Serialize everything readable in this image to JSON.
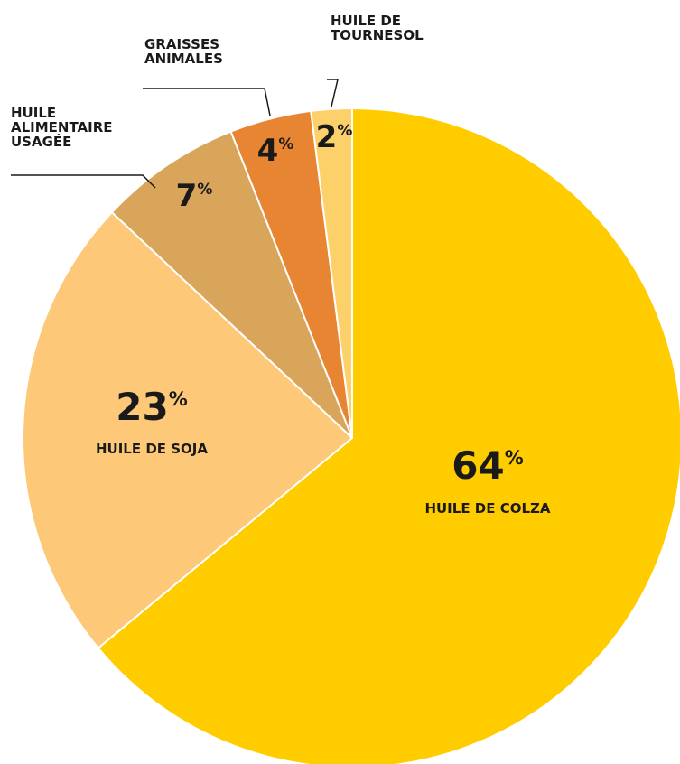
{
  "chart_data": {
    "type": "pie",
    "slices": [
      {
        "label": "HUILE DE COLZA",
        "value": 64,
        "color": "#ffcc00"
      },
      {
        "label": "HUILE DE SOJA",
        "value": 23,
        "color": "#fdc978"
      },
      {
        "label": "HUILE ALIMENTAIRE USAGÉE",
        "value": 7,
        "color": "#d9a55b"
      },
      {
        "label": "GRAISSES ANIMALES",
        "value": 4,
        "color": "#e88532"
      },
      {
        "label": "HUILE DE TOURNESOL",
        "value": 2,
        "color": "#fdd16a"
      }
    ],
    "percent_sign": "%",
    "slice_border_color": "#ffffff"
  }
}
